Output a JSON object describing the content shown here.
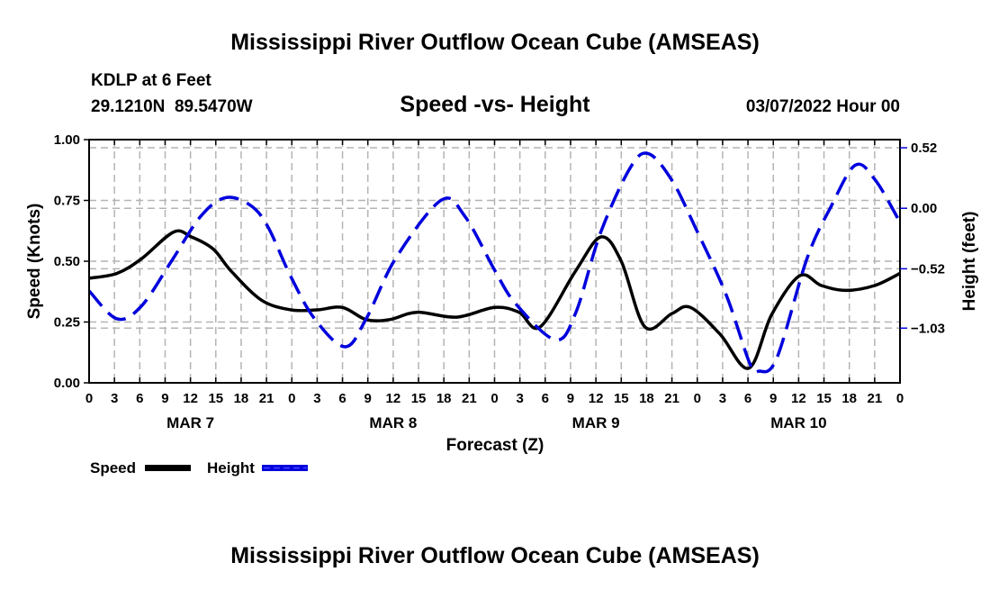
{
  "title": "Mississippi River Outflow Ocean Cube (AMSEAS)",
  "footer_title": "Mississippi River Outflow Ocean Cube (AMSEAS)",
  "station": "KDLP at 6 Feet",
  "coords": "29.1210N  89.5470W",
  "date": "03/07/2022 Hour 00",
  "chart_data": {
    "type": "line",
    "title": "Speed -vs- Height",
    "xlabel": "Forecast (Z)",
    "ylabel": "Speed (Knots)",
    "y2label": "Height (feet)",
    "xlim": [
      0,
      96
    ],
    "ylim": [
      0,
      1
    ],
    "y2lim": [
      -1.5,
      0.59
    ],
    "grid": true,
    "x_ticks": [
      0,
      3,
      6,
      9,
      12,
      15,
      18,
      21,
      24,
      27,
      30,
      33,
      36,
      39,
      42,
      45,
      48,
      51,
      54,
      57,
      60,
      63,
      66,
      69,
      72,
      75,
      78,
      81,
      84,
      87,
      90,
      93,
      96
    ],
    "x_tick_labels": [
      "0",
      "3",
      "6",
      "9",
      "12",
      "15",
      "18",
      "21",
      "0",
      "3",
      "6",
      "9",
      "12",
      "15",
      "18",
      "21",
      "0",
      "3",
      "6",
      "9",
      "12",
      "15",
      "18",
      "21",
      "0",
      "3",
      "6",
      "9",
      "12",
      "15",
      "18",
      "21",
      "0"
    ],
    "day_labels": [
      {
        "x": 12,
        "label": "MAR 7"
      },
      {
        "x": 36,
        "label": "MAR 8"
      },
      {
        "x": 60,
        "label": "MAR 9"
      },
      {
        "x": 84,
        "label": "MAR 10"
      }
    ],
    "y_ticks": [
      0,
      0.25,
      0.5,
      0.75,
      1.0
    ],
    "y_tick_labels": [
      "0.00",
      "0.25",
      "0.50",
      "0.75",
      "1.00"
    ],
    "y2_ticks": [
      0.52,
      0,
      -0.52,
      -1.03
    ],
    "y2_tick_labels": [
      "0.52",
      "0.00",
      "−0.52",
      "−1.03"
    ],
    "legend_position": "bottom-left",
    "series": [
      {
        "name": "Speed",
        "axis": "left",
        "color": "#000000",
        "dash": false,
        "x": [
          0,
          3.3,
          6.2,
          10,
          12.1,
          14.7,
          16.8,
          20.4,
          23.9,
          27,
          30,
          32.8,
          35.6,
          38.8,
          43.5,
          48,
          50.9,
          53.4,
          57.6,
          60.6,
          63,
          65.8,
          69,
          71.2,
          74.7,
          78.1,
          80.8,
          84.1,
          86.7,
          89.6,
          93,
          96
        ],
        "values": [
          0.43,
          0.45,
          0.51,
          0.62,
          0.6,
          0.55,
          0.46,
          0.34,
          0.3,
          0.3,
          0.31,
          0.26,
          0.26,
          0.29,
          0.27,
          0.31,
          0.29,
          0.23,
          0.46,
          0.6,
          0.5,
          0.23,
          0.285,
          0.31,
          0.2,
          0.06,
          0.28,
          0.44,
          0.4,
          0.38,
          0.4,
          0.45
        ]
      },
      {
        "name": "Height",
        "axis": "right",
        "color": "#0000dd",
        "dash": true,
        "x": [
          0,
          3.3,
          6.2,
          9.7,
          13.2,
          16.1,
          19,
          21.1,
          23.9,
          26.7,
          30.3,
          32.8,
          36.3,
          41.7,
          44.5,
          48,
          50.5,
          55.2,
          57.6,
          60.5,
          64,
          66.2,
          69,
          71.8,
          75.4,
          78.2,
          79.3,
          81.4,
          85,
          87.8,
          90.7,
          93.1,
          96
        ],
        "values": [
          -0.71,
          -0.95,
          -0.84,
          -0.46,
          -0.07,
          0.09,
          0.03,
          -0.15,
          -0.59,
          -0.95,
          -1.19,
          -0.95,
          -0.43,
          0.07,
          -0.07,
          -0.53,
          -0.82,
          -1.13,
          -0.9,
          -0.22,
          0.34,
          0.47,
          0.24,
          -0.17,
          -0.74,
          -1.33,
          -1.4,
          -1.29,
          -0.43,
          0.01,
          0.37,
          0.24,
          -0.12
        ]
      }
    ]
  }
}
